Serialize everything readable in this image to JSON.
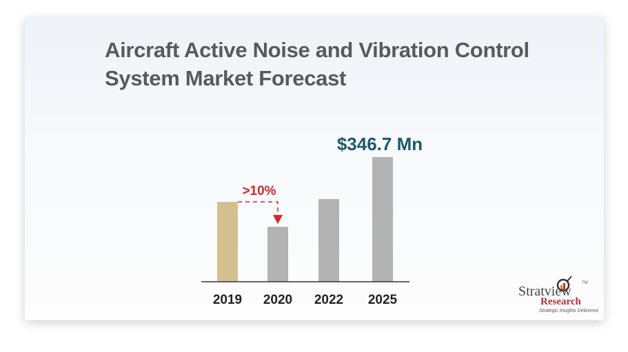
{
  "title_line1": "Aircraft Active Noise and Vibration Control",
  "title_line2": "System Market Forecast",
  "chart_data": {
    "type": "bar",
    "title": "Aircraft Active Noise and Vibration Control System Market Forecast",
    "categories": [
      "2019",
      "2020",
      "2022",
      "2025"
    ],
    "values": [
      222,
      153,
      230,
      346.7
    ],
    "colors": [
      "#d4bf8f",
      "#b3b3b3",
      "#b3b3b3",
      "#b3b3b3"
    ],
    "ylim": [
      0,
      346.7
    ],
    "grid": false,
    "annotations": [
      {
        "text": "$346.7 Mn",
        "target": "2025",
        "color": "#1d5a66"
      },
      {
        "text": ">10%",
        "from": "2019",
        "to": "2020",
        "kind": "decline-arrow",
        "color": "#d9262c"
      }
    ]
  },
  "logo": {
    "name": "Stratview",
    "tm": "TM",
    "sub": "Research",
    "tagline": "Strategic Insights Delivered"
  }
}
